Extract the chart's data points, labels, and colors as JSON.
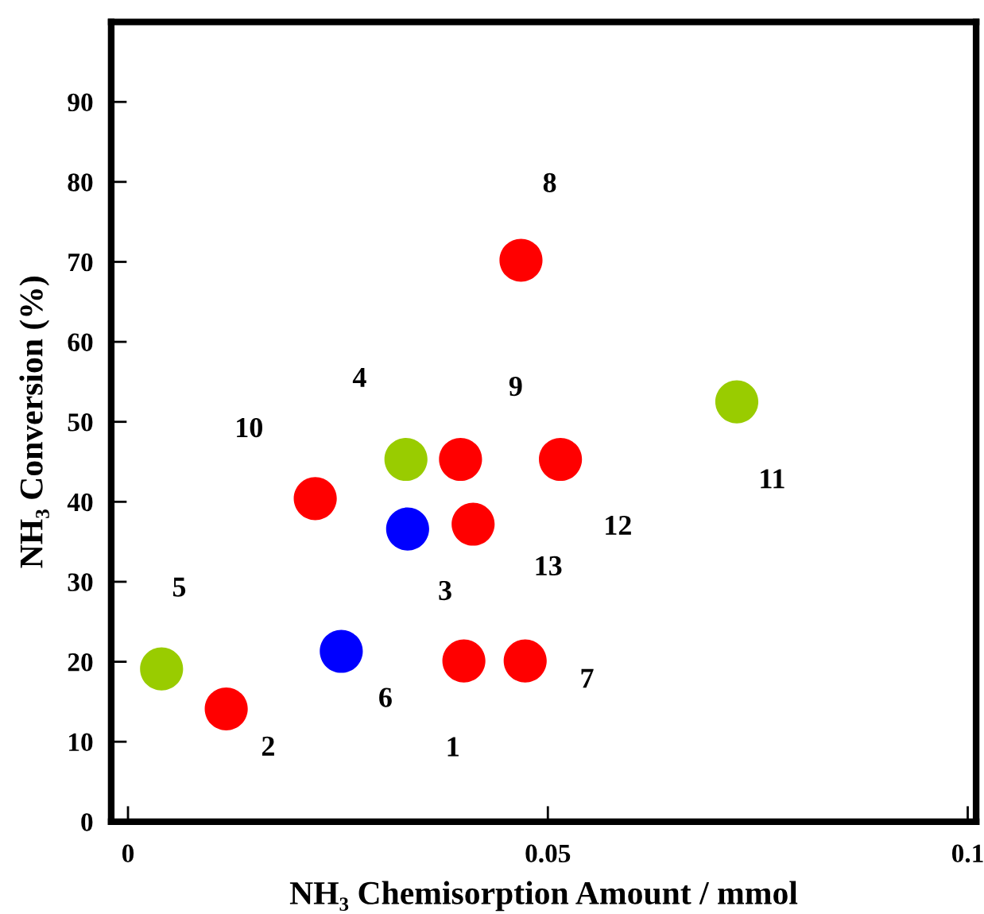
{
  "chart_data": {
    "type": "scatter",
    "xlabel": "NH₃ Chemisorption Amount / mmol",
    "ylabel": "NH₃ Conversion (%)",
    "xlim": [
      -0.002,
      0.101
    ],
    "ylim": [
      0,
      100
    ],
    "xticks": [
      0,
      0.05,
      0.1
    ],
    "yticks": [
      0,
      10,
      20,
      30,
      40,
      50,
      60,
      70,
      80,
      90
    ],
    "marker": "circle",
    "series": [
      {
        "color": "#ff0000",
        "x": [
          0.04,
          0.0117,
          0.0473,
          0.0468,
          0.0396,
          0.0223,
          0.0515,
          0.0411
        ],
        "values": [
          20.1,
          14.1,
          20.1,
          70.2,
          45.3,
          40.4,
          45.3,
          37.2
        ]
      },
      {
        "color": "#0000ff",
        "x": [
          0.0333,
          0.0254
        ],
        "values": [
          36.6,
          21.3
        ]
      },
      {
        "color": "#99cc00",
        "x": [
          0.0331,
          0.004,
          0.0725
        ],
        "values": [
          45.3,
          19.1,
          52.5
        ]
      }
    ],
    "annotations": [
      {
        "text": "1",
        "x": 0.04,
        "y": 20.1
      },
      {
        "text": "2",
        "x": 0.0117,
        "y": 14.1
      },
      {
        "text": "3",
        "x": 0.0333,
        "y": 36.6
      },
      {
        "text": "4",
        "x": 0.0331,
        "y": 45.3
      },
      {
        "text": "5",
        "x": 0.004,
        "y": 19.1
      },
      {
        "text": "6",
        "x": 0.0254,
        "y": 21.3
      },
      {
        "text": "7",
        "x": 0.0473,
        "y": 20.1
      },
      {
        "text": "8",
        "x": 0.0468,
        "y": 70.2
      },
      {
        "text": "9",
        "x": 0.0396,
        "y": 45.3
      },
      {
        "text": "10",
        "x": 0.0223,
        "y": 40.4
      },
      {
        "text": "11",
        "x": 0.0725,
        "y": 52.5
      },
      {
        "text": "12",
        "x": 0.0515,
        "y": 45.3
      },
      {
        "text": "13",
        "x": 0.0411,
        "y": 37.2
      }
    ]
  }
}
